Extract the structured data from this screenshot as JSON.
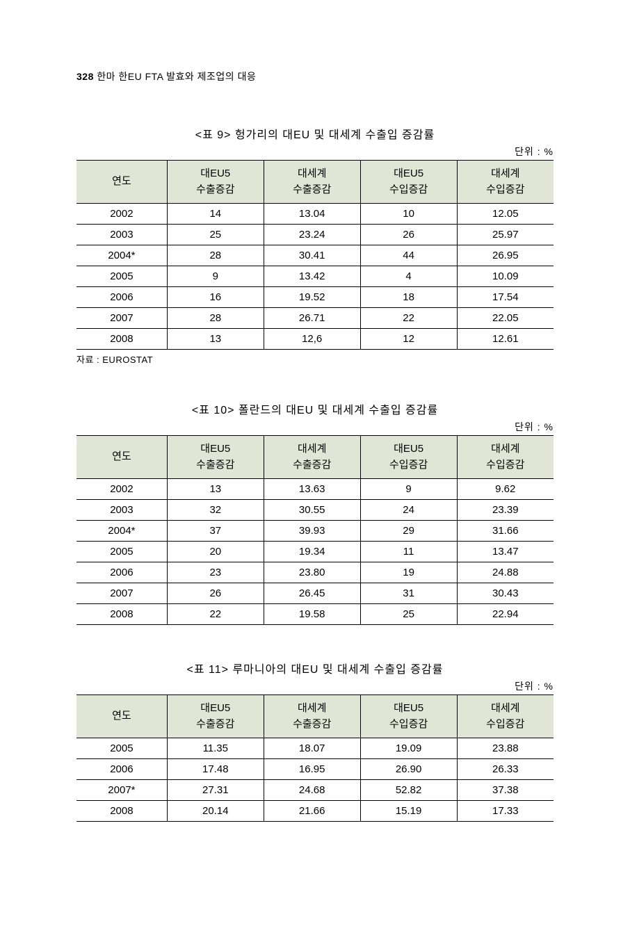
{
  "page_header": {
    "number": "328",
    "text": "한마 한EU FTA 발효와 제조업의 대응"
  },
  "unit_label": "단위 : %",
  "columns": [
    "연도",
    "대EU5\n수출증감",
    "대세계\n수출증감",
    "대EU5\n수입증감",
    "대세계\n수입증감"
  ],
  "tables": [
    {
      "title": "<표 9> 헝가리의 대EU 및 대세계 수출입 증감률",
      "rows": [
        [
          "2002",
          "14",
          "13.04",
          "10",
          "12.05"
        ],
        [
          "2003",
          "25",
          "23.24",
          "26",
          "25.97"
        ],
        [
          "2004*",
          "28",
          "30.41",
          "44",
          "26.95"
        ],
        [
          "2005",
          "9",
          "13.42",
          "4",
          "10.09"
        ],
        [
          "2006",
          "16",
          "19.52",
          "18",
          "17.54"
        ],
        [
          "2007",
          "28",
          "26.71",
          "22",
          "22.05"
        ],
        [
          "2008",
          "13",
          "12,6",
          "12",
          "12.61"
        ]
      ],
      "source": "자료 : EUROSTAT"
    },
    {
      "title": "<표 10> 폴란드의 대EU 및 대세계 수출입 증감률",
      "rows": [
        [
          "2002",
          "13",
          "13.63",
          "9",
          "9.62"
        ],
        [
          "2003",
          "32",
          "30.55",
          "24",
          "23.39"
        ],
        [
          "2004*",
          "37",
          "39.93",
          "29",
          "31.66"
        ],
        [
          "2005",
          "20",
          "19.34",
          "11",
          "13.47"
        ],
        [
          "2006",
          "23",
          "23.80",
          "19",
          "24.88"
        ],
        [
          "2007",
          "26",
          "26.45",
          "31",
          "30.43"
        ],
        [
          "2008",
          "22",
          "19.58",
          "25",
          "22.94"
        ]
      ],
      "source": ""
    },
    {
      "title": "<표 11> 루마니아의 대EU 및 대세계 수출입 증감률",
      "rows": [
        [
          "2005",
          "11.35",
          "18.07",
          "19.09",
          "23.88"
        ],
        [
          "2006",
          "17.48",
          "16.95",
          "26.90",
          "26.33"
        ],
        [
          "2007*",
          "27.31",
          "24.68",
          "52.82",
          "37.38"
        ],
        [
          "2008",
          "20.14",
          "21.66",
          "15.19",
          "17.33"
        ]
      ],
      "source": ""
    }
  ]
}
